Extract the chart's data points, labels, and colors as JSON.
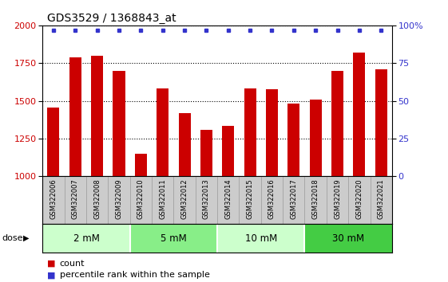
{
  "title": "GDS3529 / 1368843_at",
  "samples": [
    "GSM322006",
    "GSM322007",
    "GSM322008",
    "GSM322009",
    "GSM322010",
    "GSM322011",
    "GSM322012",
    "GSM322013",
    "GSM322014",
    "GSM322015",
    "GSM322016",
    "GSM322017",
    "GSM322018",
    "GSM322019",
    "GSM322020",
    "GSM322021"
  ],
  "counts": [
    1455,
    1790,
    1800,
    1700,
    1150,
    1580,
    1420,
    1305,
    1335,
    1580,
    1575,
    1480,
    1510,
    1700,
    1820,
    1710
  ],
  "percentiles": [
    100,
    100,
    100,
    100,
    100,
    100,
    100,
    100,
    100,
    100,
    100,
    100,
    100,
    100,
    100,
    100
  ],
  "bar_color": "#cc0000",
  "dot_color": "#3333cc",
  "ylim": [
    1000,
    2000
  ],
  "yticks_left": [
    1000,
    1250,
    1500,
    1750,
    2000
  ],
  "yticks_right": [
    0,
    25,
    50,
    75,
    100
  ],
  "groups": [
    {
      "label": "2 mM",
      "start": 0,
      "end": 3,
      "color": "#ccffcc"
    },
    {
      "label": "5 mM",
      "start": 4,
      "end": 7,
      "color": "#88ee88"
    },
    {
      "label": "10 mM",
      "start": 8,
      "end": 11,
      "color": "#ccffcc"
    },
    {
      "label": "30 mM",
      "start": 12,
      "end": 15,
      "color": "#44cc44"
    }
  ],
  "xlabel_color": "#cc0000",
  "ylabel_right_color": "#3333cc",
  "bg_tick_area": "#cccccc",
  "legend_count_color": "#cc0000",
  "legend_pct_color": "#3333cc",
  "title_fontsize": 10,
  "bar_width": 0.55
}
